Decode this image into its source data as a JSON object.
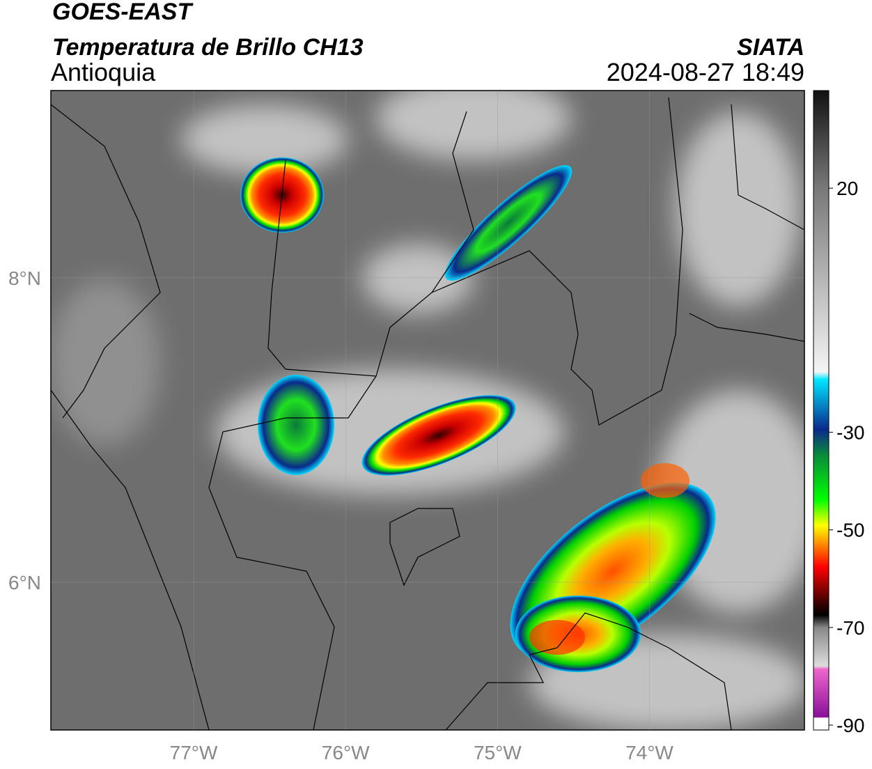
{
  "header": {
    "title": "GOES-EAST",
    "subtitle": "Temperatura de Brillo CH13",
    "region": "Antioquia",
    "source": "SIATA",
    "datetime": "2024-08-27 18:49"
  },
  "map": {
    "xlim": [
      -77.94,
      -72.98
    ],
    "ylim": [
      5.03,
      9.23
    ],
    "xticks": [
      {
        "value": -77,
        "label": "77°W"
      },
      {
        "value": -76,
        "label": "76°W"
      },
      {
        "value": -75,
        "label": "75°W"
      },
      {
        "value": -74,
        "label": "74°W"
      }
    ],
    "yticks": [
      {
        "value": 8,
        "label": "8°N"
      },
      {
        "value": 6,
        "label": "6°N"
      }
    ]
  },
  "colorbar": {
    "lim": [
      -91,
      40
    ],
    "ticks": [
      20,
      -30,
      -50,
      -70,
      -90
    ]
  }
}
